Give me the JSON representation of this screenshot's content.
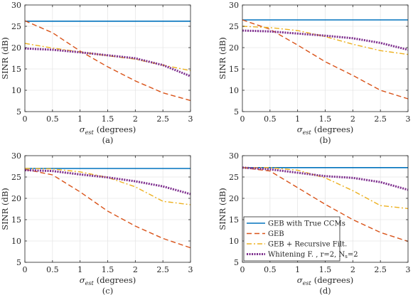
{
  "chart_data": [
    {
      "type": "line",
      "caption": "(a)",
      "xlabel_main": "σ",
      "xlabel_sub": "est",
      "xlabel_rest": "(degrees)",
      "ylabel": "SINR (dB)",
      "xlim": [
        0,
        3
      ],
      "ylim": [
        5,
        30
      ],
      "xticks": [
        "0",
        "0.5",
        "1",
        "1.5",
        "2",
        "2.5",
        "3"
      ],
      "yticks": [
        "5",
        "10",
        "15",
        "20",
        "25",
        "30"
      ],
      "grid": true,
      "x": [
        0,
        0.5,
        1,
        1.5,
        2,
        2.5,
        3
      ],
      "series": [
        {
          "name": "GEB with True CCMs",
          "values": [
            26.2,
            26.2,
            26.2,
            26.2,
            26.2,
            26.2,
            26.2
          ]
        },
        {
          "name": "GEB",
          "values": [
            26.3,
            23.5,
            19.2,
            15.5,
            12.2,
            9.4,
            7.6
          ]
        },
        {
          "name": "GEB + Recursive Filt.",
          "values": [
            21.0,
            19.9,
            19.0,
            18.1,
            17.3,
            15.9,
            14.6
          ]
        },
        {
          "name": "Whitening F. , r=2, N_s=2",
          "values": [
            19.8,
            19.5,
            18.9,
            18.2,
            17.5,
            15.9,
            13.3
          ]
        }
      ]
    },
    {
      "type": "line",
      "caption": "(b)",
      "xlabel_main": "σ",
      "xlabel_sub": "est",
      "xlabel_rest": "(degrees)",
      "ylabel": "SINR (dB)",
      "xlim": [
        0,
        3
      ],
      "ylim": [
        5,
        30
      ],
      "xticks": [
        "0",
        "0.5",
        "1",
        "1.5",
        "2",
        "2.5",
        "3"
      ],
      "yticks": [
        "5",
        "10",
        "15",
        "20",
        "25",
        "30"
      ],
      "grid": true,
      "x": [
        0,
        0.5,
        1,
        1.5,
        2,
        2.5,
        3
      ],
      "series": [
        {
          "name": "GEB with True CCMs",
          "values": [
            26.5,
            26.5,
            26.5,
            26.5,
            26.5,
            26.5,
            26.5
          ]
        },
        {
          "name": "GEB",
          "values": [
            26.5,
            24.3,
            20.6,
            16.7,
            13.5,
            10.0,
            8.0
          ]
        },
        {
          "name": "GEB + Recursive Filt.",
          "values": [
            25.0,
            24.7,
            24.0,
            22.6,
            20.8,
            19.3,
            18.4
          ]
        },
        {
          "name": "Whitening F. , r=2, N_s=2",
          "values": [
            24.0,
            23.8,
            23.3,
            22.8,
            22.2,
            21.1,
            19.5
          ]
        }
      ]
    },
    {
      "type": "line",
      "caption": "(c)",
      "xlabel_main": "σ",
      "xlabel_sub": "est",
      "xlabel_rest": "(degrees)",
      "ylabel": "SINR (dB)",
      "xlim": [
        0,
        3
      ],
      "ylim": [
        5,
        30
      ],
      "xticks": [
        "0",
        "0.5",
        "1",
        "1.5",
        "2",
        "2.5",
        "3"
      ],
      "yticks": [
        "5",
        "10",
        "15",
        "20",
        "25",
        "30"
      ],
      "grid": true,
      "x": [
        0,
        0.5,
        1,
        1.5,
        2,
        2.5,
        3
      ],
      "series": [
        {
          "name": "GEB with True CCMs",
          "values": [
            27.0,
            27.0,
            27.0,
            27.0,
            27.0,
            27.0,
            27.0
          ]
        },
        {
          "name": "GEB",
          "values": [
            26.8,
            25.5,
            21.5,
            17.0,
            13.5,
            10.6,
            8.4
          ]
        },
        {
          "name": "GEB + Recursive Filt.",
          "values": [
            27.0,
            26.9,
            26.2,
            24.9,
            22.7,
            19.3,
            18.5
          ]
        },
        {
          "name": "Whitening F. , r=2, N_s=2",
          "values": [
            26.6,
            26.4,
            25.6,
            24.9,
            24.0,
            22.8,
            21.0
          ]
        }
      ]
    },
    {
      "type": "line",
      "caption": "(d)",
      "xlabel_main": "σ",
      "xlabel_sub": "est",
      "xlabel_rest": "(degrees)",
      "ylabel": "SINR (dB)",
      "xlim": [
        0,
        3
      ],
      "ylim": [
        5,
        30
      ],
      "xticks": [
        "0",
        "0.5",
        "1",
        "1.5",
        "2",
        "2.5",
        "3"
      ],
      "yticks": [
        "5",
        "10",
        "15",
        "20",
        "25",
        "30"
      ],
      "grid": true,
      "x": [
        0,
        0.5,
        1,
        1.5,
        2,
        2.5,
        3
      ],
      "legend": {
        "placement": "bottom-left",
        "entries": [
          "GEB with True CCMs",
          "GEB",
          "GEB + Recursive Filt.",
          "Whitening F. , r=2, N"
        ],
        "last_entry_sub": "s",
        "last_entry_tail": "=2"
      },
      "series": [
        {
          "name": "GEB with True CCMs",
          "values": [
            27.2,
            27.2,
            27.2,
            27.2,
            27.2,
            27.2,
            27.2
          ]
        },
        {
          "name": "GEB",
          "values": [
            27.2,
            26.4,
            22.5,
            18.6,
            15.0,
            12.0,
            9.9
          ]
        },
        {
          "name": "GEB + Recursive Filt.",
          "values": [
            27.2,
            27.2,
            26.6,
            24.8,
            21.8,
            18.3,
            17.6
          ]
        },
        {
          "name": "Whitening F. , r=2, N_s=2",
          "values": [
            27.2,
            26.8,
            26.0,
            25.2,
            24.8,
            23.8,
            22.0
          ]
        }
      ]
    }
  ],
  "colors": {
    "true_ccm": "#0072BD",
    "geb": "#D95319",
    "recursive": "#EDB120",
    "whitening": "#7E2F8E",
    "grid": "#e6e6e6",
    "axis": "#262626"
  }
}
